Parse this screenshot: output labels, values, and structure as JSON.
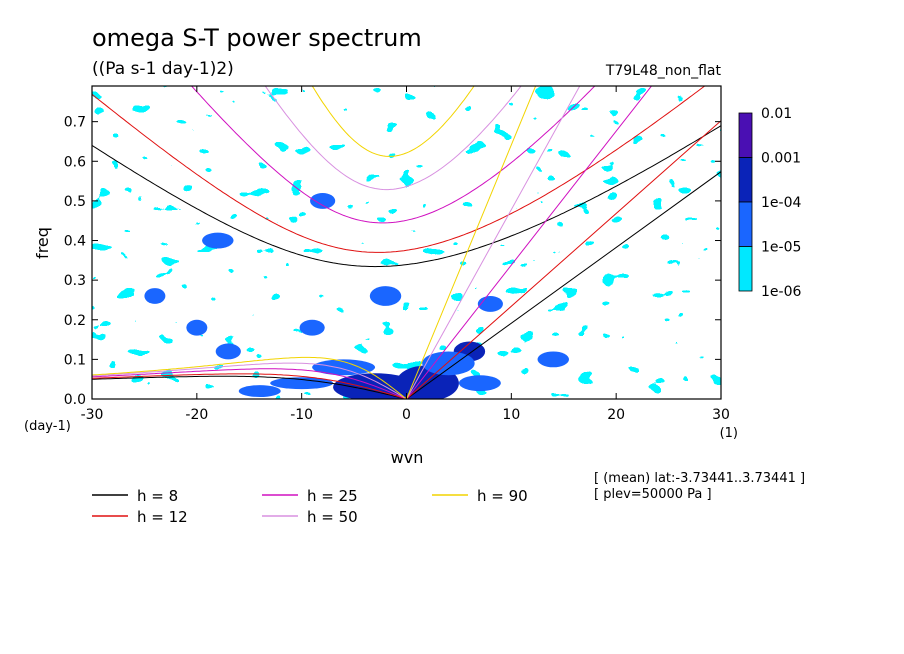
{
  "title": "omega S-T power spectrum",
  "units": "((Pa s-1 day-1)2)",
  "run_label": "T79L48_non_flat",
  "info_lines": [
    "[ (mean) lat:-3.73441..3.73441 ]",
    "[ plev=50000 Pa ]"
  ],
  "chart_data": {
    "type": "heatmap",
    "xlabel": "wvn",
    "xunit": "(1)",
    "ylabel": "freq",
    "yunit": "(day-1)",
    "xlim": [
      -30,
      30
    ],
    "ylim": [
      0,
      0.79
    ],
    "xticks": [
      -30,
      -20,
      -10,
      0,
      10,
      20,
      30
    ],
    "xtick_labels": [
      "-30",
      "-20",
      "-10",
      "0",
      "10",
      "20",
      "30"
    ],
    "yticks": [
      0,
      0.1,
      0.2,
      0.3,
      0.4,
      0.5,
      0.6,
      0.7
    ],
    "ytick_labels": [
      "0.0",
      "0.1",
      "0.2",
      "0.3",
      "0.4",
      "0.5",
      "0.6",
      "0.7"
    ],
    "colorbar": {
      "levels": [
        "0.01",
        "0.001",
        "1e-04",
        "1e-05",
        "1e-06"
      ],
      "colors": [
        "#4a0fb3",
        "#0a23b8",
        "#1a66ff",
        "#00e8ff"
      ]
    },
    "dispersion_curves": [
      {
        "label": "h =  8",
        "h": 8,
        "color": "#000000"
      },
      {
        "label": "h = 12",
        "h": 12,
        "color": "#e01010"
      },
      {
        "label": "h = 25",
        "h": 25,
        "color": "#d010c0"
      },
      {
        "label": "h = 50",
        "h": 50,
        "color": "#d890e0"
      },
      {
        "label": "h = 90",
        "h": 90,
        "color": "#f2d400"
      }
    ]
  }
}
